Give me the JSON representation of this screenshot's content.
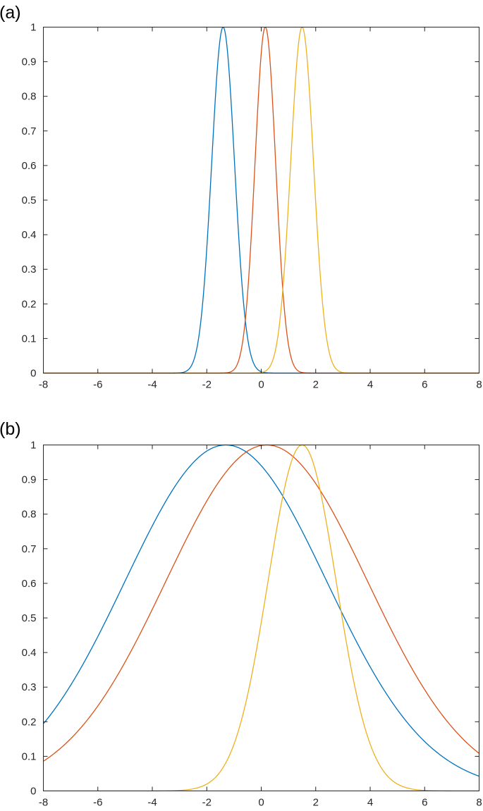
{
  "chart_data": [
    {
      "type": "line",
      "panel_label": "(a)",
      "title": "",
      "xlabel": "",
      "ylabel": "",
      "xlim": [
        -8,
        8
      ],
      "ylim": [
        0,
        1
      ],
      "grid": false,
      "xticks": [
        "-8",
        "-6",
        "-4",
        "-2",
        "0",
        "2",
        "4",
        "6",
        "8"
      ],
      "yticks": [
        "0",
        "0.1",
        "0.2",
        "0.3",
        "0.4",
        "0.5",
        "0.6",
        "0.7",
        "0.8",
        "0.9",
        "1"
      ],
      "series": [
        {
          "color": "#0072BD",
          "peak_x": -1.4,
          "sigma": 0.42
        },
        {
          "color": "#D95319",
          "peak_x": 0.15,
          "sigma": 0.38
        },
        {
          "color": "#EDB120",
          "peak_x": 1.5,
          "sigma": 0.42
        }
      ]
    },
    {
      "type": "line",
      "panel_label": "(b)",
      "title": "",
      "xlabel": "",
      "ylabel": "",
      "xlim": [
        -8,
        8
      ],
      "ylim": [
        0,
        1
      ],
      "grid": false,
      "xticks": [
        "-8",
        "-6",
        "-4",
        "-2",
        "0",
        "2",
        "4",
        "6",
        "8"
      ],
      "yticks": [
        "0",
        "0.1",
        "0.2",
        "0.3",
        "0.4",
        "0.5",
        "0.6",
        "0.7",
        "0.8",
        "0.9",
        "1"
      ],
      "series": [
        {
          "color": "#0072BD",
          "peak_x": -1.3,
          "sigma": 3.7
        },
        {
          "color": "#D95319",
          "peak_x": 0.2,
          "sigma": 3.7
        },
        {
          "color": "#EDB120",
          "peak_x": 1.5,
          "sigma": 1.25
        }
      ]
    }
  ]
}
